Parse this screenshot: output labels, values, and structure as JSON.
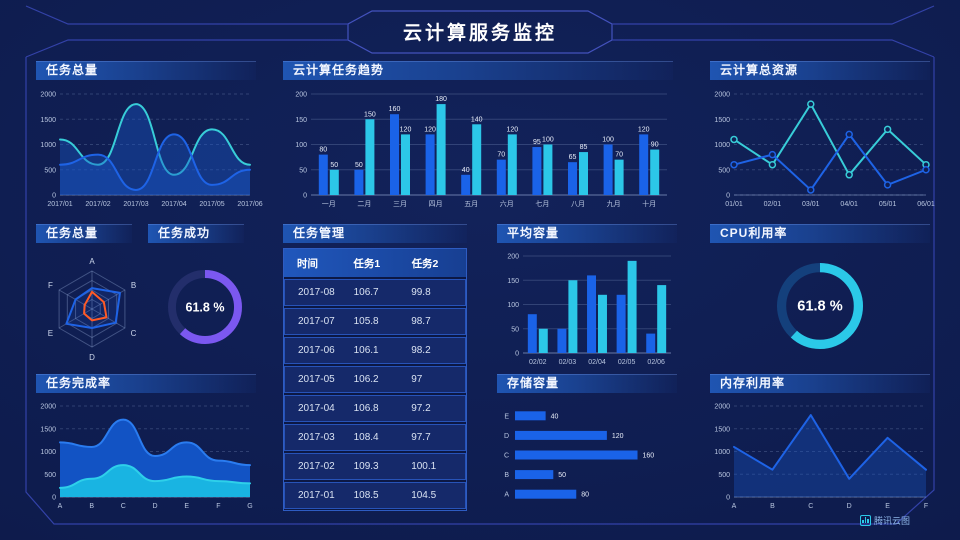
{
  "header": {
    "title": "云计算服务监控"
  },
  "panels": {
    "task_total": {
      "title": "任务总量"
    },
    "cloud_task_trend": {
      "title": "云计算任务趋势"
    },
    "cloud_resources": {
      "title": "云计算总资源"
    },
    "task_total_radar": {
      "title": "任务总量"
    },
    "task_success": {
      "title": "任务成功"
    },
    "task_manage": {
      "title": "任务管理"
    },
    "avg_capacity": {
      "title": "平均容量"
    },
    "cpu": {
      "title": "CPU利用率"
    },
    "completion": {
      "title": "任务完成率"
    },
    "storage": {
      "title": "存储容量"
    },
    "memory": {
      "title": "内存利用率"
    }
  },
  "table": {
    "columns": [
      "时间",
      "任务1",
      "任务2"
    ],
    "rows": [
      [
        "2017-08",
        "106.7",
        "99.8"
      ],
      [
        "2017-07",
        "105.8",
        "98.7"
      ],
      [
        "2017-06",
        "106.1",
        "98.2"
      ],
      [
        "2017-05",
        "106.2",
        "97"
      ],
      [
        "2017-04",
        "106.8",
        "97.2"
      ],
      [
        "2017-03",
        "108.4",
        "97.7"
      ],
      [
        "2017-02",
        "109.3",
        "100.1"
      ],
      [
        "2017-01",
        "108.5",
        "104.5"
      ]
    ]
  },
  "footer": {
    "logo": "腾讯云图"
  },
  "chart_data": [
    {
      "id": "task_total",
      "type": "line",
      "smooth": true,
      "markers": false,
      "x": [
        "2017/01",
        "2017/02",
        "2017/03",
        "2017/04",
        "2017/05",
        "2017/06"
      ],
      "ylim": [
        0,
        2000
      ],
      "yticks": [
        0,
        500,
        1000,
        1500,
        2000
      ],
      "series": [
        {
          "name": "series-cyan",
          "color": "#38cdd8",
          "fill": "rgba(25,88,200,0.40)",
          "values": [
            1100,
            600,
            1800,
            400,
            1300,
            600
          ]
        },
        {
          "name": "series-blue",
          "color": "#1e63e6",
          "fill": "rgba(25,88,200,0.40)",
          "values": [
            600,
            800,
            100,
            1200,
            200,
            500
          ]
        }
      ]
    },
    {
      "id": "cloud_task_trend",
      "type": "bar",
      "labels": true,
      "x": [
        "一月",
        "二月",
        "三月",
        "四月",
        "五月",
        "六月",
        "七月",
        "八月",
        "九月",
        "十月"
      ],
      "ylim": [
        0,
        200
      ],
      "yticks": [
        0,
        50,
        100,
        150,
        200
      ],
      "series": [
        {
          "name": "任务1",
          "color": "#1a63e8",
          "values": [
            80,
            50,
            160,
            120,
            40,
            70,
            95,
            65,
            100,
            120
          ]
        },
        {
          "name": "任务2",
          "color": "#2cc7e8",
          "values": [
            50,
            150,
            120,
            180,
            140,
            120,
            100,
            85,
            70,
            90
          ]
        }
      ]
    },
    {
      "id": "cloud_resources",
      "type": "line",
      "smooth": false,
      "markers": true,
      "x": [
        "01/01",
        "02/01",
        "03/01",
        "04/01",
        "05/01",
        "06/01"
      ],
      "ylim": [
        0,
        2000
      ],
      "yticks": [
        0,
        500,
        1000,
        1500,
        2000
      ],
      "series": [
        {
          "name": "series-cyan",
          "color": "#38cdd8",
          "values": [
            1100,
            600,
            1800,
            400,
            1300,
            600
          ]
        },
        {
          "name": "series-blue",
          "color": "#1e63e6",
          "values": [
            600,
            800,
            100,
            1200,
            200,
            500
          ]
        }
      ]
    },
    {
      "id": "task_total_radar",
      "type": "radar",
      "axes": [
        "A",
        "B",
        "C",
        "D",
        "E",
        "F"
      ],
      "max": 100,
      "series": [
        {
          "name": "blue-polygon",
          "color": "#1e63e6",
          "values": [
            55,
            85,
            72,
            50,
            78,
            50
          ]
        },
        {
          "name": "orange-polygon",
          "color": "#ff5a26",
          "values": [
            45,
            36,
            44,
            30,
            24,
            22
          ]
        }
      ]
    },
    {
      "id": "task_success",
      "type": "donut",
      "value": 61.8,
      "unit": "%",
      "color": "#7b58f0",
      "track": "#232e6b"
    },
    {
      "id": "avg_capacity",
      "type": "bar",
      "labels": false,
      "x": [
        "02/02",
        "02/03",
        "02/04",
        "02/05",
        "02/06"
      ],
      "ylim": [
        0,
        200
      ],
      "yticks": [
        0,
        50,
        100,
        150,
        200
      ],
      "series": [
        {
          "color": "#1a63e8",
          "values": [
            80,
            50,
            160,
            120,
            40
          ]
        },
        {
          "color": "#2cc7e8",
          "values": [
            50,
            150,
            120,
            190,
            140
          ]
        }
      ]
    },
    {
      "id": "cpu",
      "type": "donut",
      "value": 61.8,
      "unit": "%",
      "color": "#2bc9e8",
      "track": "#14407c"
    },
    {
      "id": "completion",
      "type": "line",
      "smooth": true,
      "x": [
        "A",
        "B",
        "C",
        "D",
        "E",
        "F",
        "G"
      ],
      "ylim": [
        0,
        2000
      ],
      "yticks": [
        0,
        500,
        1000,
        1500,
        2000
      ],
      "series": [
        {
          "name": "blue-area",
          "color": "#2a7cf0",
          "fill": "#1253c4",
          "values": [
            1200,
            1100,
            1700,
            900,
            1200,
            800,
            700
          ]
        },
        {
          "name": "cyan-area",
          "color": "#2ed0ea",
          "fill": "#19b4e2",
          "values": [
            200,
            400,
            700,
            350,
            450,
            350,
            300
          ]
        }
      ]
    },
    {
      "id": "storage",
      "type": "hbar",
      "categories": [
        "E",
        "D",
        "C",
        "B",
        "A"
      ],
      "values": [
        40,
        120,
        160,
        50,
        80
      ],
      "color": "#1a63e8",
      "xmax": 175
    },
    {
      "id": "memory",
      "type": "line",
      "smooth": false,
      "x": [
        "A",
        "B",
        "C",
        "D",
        "E",
        "F"
      ],
      "ylim": [
        0,
        2000
      ],
      "yticks": [
        0,
        500,
        1000,
        1500,
        2000
      ],
      "series": [
        {
          "name": "blue-line",
          "color": "#1e63e6",
          "fill": "rgba(25,88,200,0.35)",
          "values": [
            1100,
            600,
            1800,
            400,
            1300,
            600
          ]
        }
      ]
    }
  ]
}
